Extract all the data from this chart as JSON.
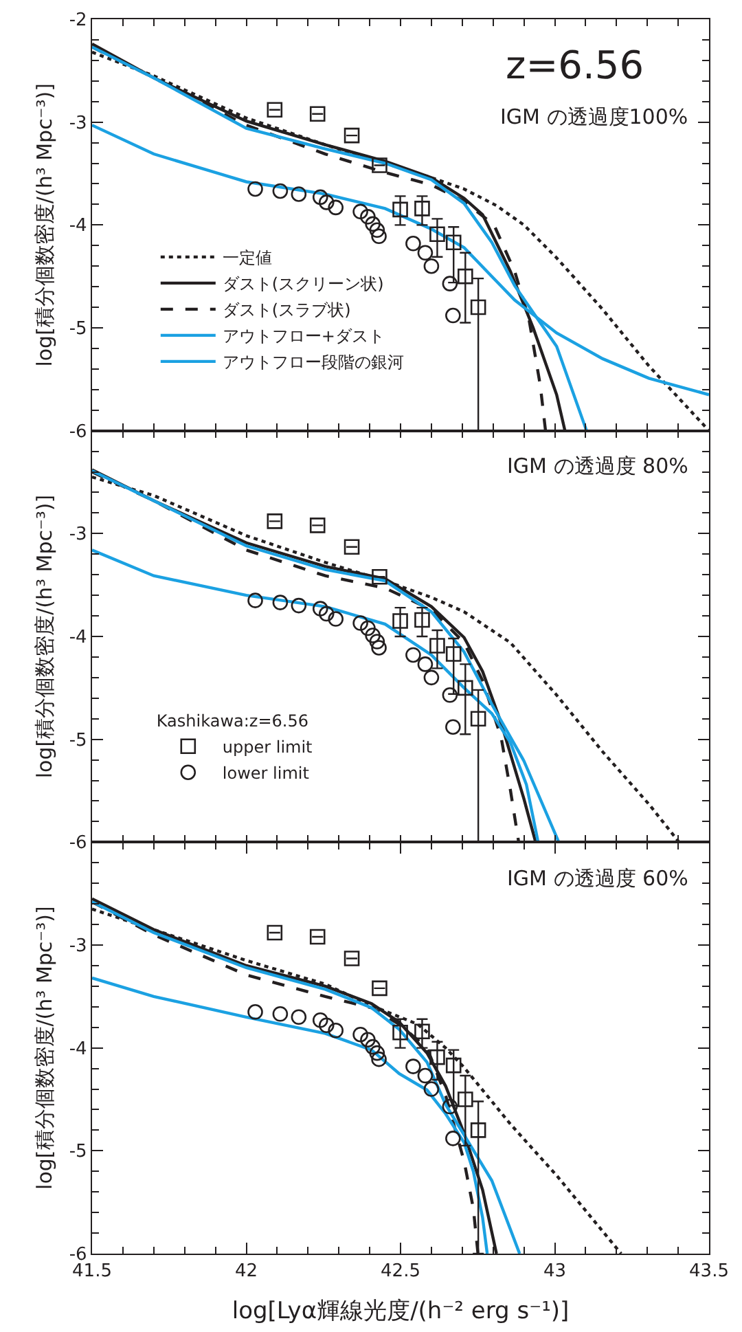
{
  "chart_data": [
    {
      "type": "line",
      "ylabel": "log[積分個数密度/(h³ Mpc⁻³)]",
      "annotations": [
        "z=6.56",
        "IGM の透過度100%"
      ],
      "xlim": [
        41.5,
        43.5
      ],
      "xticks": [
        {
          "value": 41.5,
          "label": null
        },
        {
          "value": 42,
          "label": null
        },
        {
          "value": 42.5,
          "label": null
        },
        {
          "value": 43,
          "label": null
        },
        {
          "value": 43.5,
          "label": null
        }
      ],
      "ylim": [
        -6,
        -2
      ],
      "yticks": [
        -2,
        -3,
        -4,
        -5,
        -6
      ],
      "tick_labels": "y",
      "legend": "bottom left",
      "grid": false,
      "series": [
        {
          "name": "一定値",
          "line_style": "dotted",
          "color": "#231f20",
          "x": [
            41.5,
            41.7,
            42.0,
            42.256,
            42.45,
            42.6,
            42.706,
            42.81,
            42.9,
            43.006,
            43.155,
            43.305,
            43.5
          ],
          "values": [
            -2.32,
            -2.55,
            -2.96,
            -3.22,
            -3.4,
            -3.54,
            -3.65,
            -3.81,
            -4.0,
            -4.32,
            -4.82,
            -5.37,
            -6.0
          ]
        },
        {
          "name": "ダスト(スクリーン状)",
          "line_style": "solid",
          "color": "#231f20",
          "x": [
            41.5,
            41.7,
            42.0,
            42.256,
            42.45,
            42.6,
            42.706,
            42.766,
            42.856,
            42.93,
            43.006,
            43.033
          ],
          "values": [
            -2.24,
            -2.57,
            -2.99,
            -3.22,
            -3.38,
            -3.54,
            -3.74,
            -3.9,
            -4.45,
            -5.0,
            -5.65,
            -6.0
          ]
        },
        {
          "name": "ダスト(スラブ状)",
          "line_style": "dashed",
          "color": "#231f20",
          "x": [
            41.5,
            41.7,
            42.0,
            42.256,
            42.45,
            42.6,
            42.706,
            42.803,
            42.87,
            42.916,
            42.953,
            42.97
          ],
          "values": [
            -2.27,
            -2.57,
            -3.03,
            -3.31,
            -3.49,
            -3.61,
            -3.77,
            -4.0,
            -4.45,
            -4.91,
            -5.56,
            -6.0
          ]
        },
        {
          "name": "アウトフロー+ダスト",
          "line_style": "solid",
          "color": "#1ba1e2",
          "x": [
            41.5,
            41.7,
            42.0,
            42.256,
            42.45,
            42.6,
            42.706,
            42.796,
            42.87,
            43.006,
            43.103
          ],
          "values": [
            -2.27,
            -2.57,
            -3.06,
            -3.26,
            -3.4,
            -3.56,
            -3.79,
            -4.17,
            -4.59,
            -5.18,
            -6.0
          ]
        },
        {
          "name": "アウトフロー段階の銀河",
          "line_style": "solid",
          "color": "#1ba1e2",
          "x": [
            41.5,
            41.7,
            42.0,
            42.256,
            42.45,
            42.6,
            42.706,
            42.796,
            42.87,
            43.006,
            43.155,
            43.305,
            43.5
          ],
          "values": [
            -3.03,
            -3.31,
            -3.58,
            -3.7,
            -3.84,
            -4.04,
            -4.22,
            -4.5,
            -4.73,
            -5.05,
            -5.3,
            -5.49,
            -5.65
          ]
        },
        {
          "type": "scatter",
          "marker": "square",
          "color": "#231f20",
          "x": [
            42.092,
            42.231,
            42.342,
            42.432,
            42.499,
            42.57,
            42.619,
            42.672,
            42.71,
            42.752
          ],
          "values": [
            -2.88,
            -2.92,
            -3.13,
            -3.42,
            -3.85,
            -3.84,
            -4.09,
            -4.17,
            -4.5,
            -4.8
          ],
          "errors": [
            null,
            null,
            null,
            null,
            [
              -4.0,
              -3.72
            ],
            [
              -4.0,
              -3.72
            ],
            [
              -4.31,
              -3.94
            ],
            [
              -4.56,
              -4.02
            ],
            [
              -4.95,
              -4.27
            ],
            [
              -6,
              -4.52
            ]
          ]
        },
        {
          "type": "scatter",
          "marker": "circle",
          "color": "#231f20",
          "x": [
            42.029,
            42.11,
            42.17,
            42.24,
            42.26,
            42.29,
            42.37,
            42.394,
            42.41,
            42.424,
            42.43,
            42.541,
            42.58,
            42.6,
            42.66,
            42.67
          ],
          "values": [
            -3.65,
            -3.67,
            -3.7,
            -3.73,
            -3.78,
            -3.83,
            -3.87,
            -3.92,
            -3.99,
            -4.05,
            -4.11,
            -4.18,
            -4.27,
            -4.4,
            -4.57,
            -4.88
          ]
        }
      ]
    },
    {
      "type": "line",
      "ylabel": "log[積分個数密度/(h³ Mpc⁻³)]",
      "annotations": [
        "IGM の透過度 80%"
      ],
      "xlim": [
        41.5,
        43.5
      ],
      "xticks": [
        {
          "value": 41.5,
          "label": null
        },
        {
          "value": 42,
          "label": null
        },
        {
          "value": 42.5,
          "label": null
        },
        {
          "value": 43,
          "label": null
        },
        {
          "value": 43.5,
          "label": null
        }
      ],
      "ylim": [
        -6,
        -2
      ],
      "yticks": [
        {
          "value": -2,
          "label": null
        },
        -3,
        -4,
        -5,
        -6
      ],
      "tick_labels": "y",
      "legend": "bottom left",
      "legend_title": "Kashikawa:z=6.56",
      "grid": false,
      "series": [
        {
          "line_style": "dotted",
          "color": "#231f20",
          "x": [
            41.5,
            41.7,
            42.0,
            42.256,
            42.45,
            42.6,
            42.706,
            42.856,
            43.006,
            43.155,
            43.305,
            43.403
          ],
          "values": [
            -2.45,
            -2.63,
            -3.02,
            -3.28,
            -3.46,
            -3.62,
            -3.76,
            -4.06,
            -4.57,
            -5.12,
            -5.63,
            -6.0
          ]
        },
        {
          "line_style": "solid",
          "color": "#231f20",
          "x": [
            41.5,
            41.7,
            42.0,
            42.256,
            42.45,
            42.6,
            42.706,
            42.766,
            42.826,
            42.9,
            42.938
          ],
          "values": [
            -2.38,
            -2.68,
            -3.09,
            -3.32,
            -3.44,
            -3.71,
            -4.01,
            -4.34,
            -4.84,
            -5.58,
            -6.0
          ]
        },
        {
          "line_style": "dashed",
          "color": "#231f20",
          "x": [
            41.5,
            41.7,
            42.0,
            42.256,
            42.45,
            42.6,
            42.706,
            42.766,
            42.826,
            42.856,
            42.883
          ],
          "values": [
            -2.4,
            -2.68,
            -3.16,
            -3.41,
            -3.53,
            -3.74,
            -4.06,
            -4.43,
            -4.98,
            -5.49,
            -6.0
          ]
        },
        {
          "line_style": "solid",
          "color": "#1ba1e2",
          "x": [
            41.5,
            41.7,
            42.0,
            42.256,
            42.45,
            42.6,
            42.706,
            42.796,
            42.9,
            43.013
          ],
          "values": [
            -2.39,
            -2.68,
            -3.12,
            -3.35,
            -3.46,
            -3.76,
            -4.15,
            -4.66,
            -5.21,
            -6.0
          ]
        },
        {
          "line_style": "solid",
          "color": "#1ba1e2",
          "x": [
            41.5,
            41.7,
            42.0,
            42.256,
            42.45,
            42.6,
            42.706,
            42.796,
            42.856,
            42.908,
            42.946
          ],
          "values": [
            -3.16,
            -3.41,
            -3.6,
            -3.71,
            -3.88,
            -4.18,
            -4.5,
            -4.75,
            -5.03,
            -5.44,
            -6.0
          ]
        },
        {
          "name": "upper limit",
          "type": "scatter",
          "marker": "square",
          "color": "#231f20",
          "x": [
            42.092,
            42.231,
            42.342,
            42.432,
            42.499,
            42.57,
            42.619,
            42.672,
            42.71,
            42.752
          ],
          "values": [
            -2.88,
            -2.92,
            -3.13,
            -3.42,
            -3.85,
            -3.84,
            -4.09,
            -4.17,
            -4.5,
            -4.8
          ],
          "errors": [
            null,
            null,
            null,
            null,
            [
              -4.0,
              -3.72
            ],
            [
              -4.0,
              -3.72
            ],
            [
              -4.31,
              -3.94
            ],
            [
              -4.56,
              -4.02
            ],
            [
              -4.95,
              -4.27
            ],
            [
              -6,
              -4.52
            ]
          ]
        },
        {
          "name": "lower limit",
          "type": "scatter",
          "marker": "circle",
          "color": "#231f20",
          "x": [
            42.029,
            42.11,
            42.17,
            42.24,
            42.26,
            42.29,
            42.37,
            42.394,
            42.41,
            42.424,
            42.43,
            42.541,
            42.58,
            42.6,
            42.66,
            42.67
          ],
          "values": [
            -3.65,
            -3.67,
            -3.7,
            -3.73,
            -3.78,
            -3.83,
            -3.87,
            -3.92,
            -3.99,
            -4.05,
            -4.11,
            -4.18,
            -4.27,
            -4.4,
            -4.57,
            -4.88
          ]
        }
      ]
    },
    {
      "type": "line",
      "ylabel": "log[積分個数密度/(h³ Mpc⁻³)]",
      "xlabel": "log[Lyα輝線光度/(h⁻² erg s⁻¹)]",
      "annotations": [
        "IGM の透過度 60%"
      ],
      "xlim": [
        41.5,
        43.5
      ],
      "xticks": [
        41.5,
        42,
        42.5,
        43,
        43.5
      ],
      "ylim": [
        -6,
        -2
      ],
      "yticks": [
        {
          "value": -2,
          "label": null
        },
        -3,
        -4,
        -5,
        -6
      ],
      "grid": false,
      "series": [
        {
          "line_style": "dotted",
          "color": "#231f20",
          "x": [
            41.5,
            41.7,
            42.0,
            42.256,
            42.406,
            42.556,
            42.646,
            42.706,
            42.856,
            43.006,
            43.215
          ],
          "values": [
            -2.65,
            -2.85,
            -3.15,
            -3.38,
            -3.59,
            -3.77,
            -4.0,
            -4.19,
            -4.74,
            -5.24,
            -6.0
          ]
        },
        {
          "line_style": "solid",
          "color": "#231f20",
          "x": [
            41.5,
            41.7,
            42.0,
            42.256,
            42.406,
            42.496,
            42.586,
            42.646,
            42.706,
            42.766,
            42.811
          ],
          "values": [
            -2.55,
            -2.85,
            -3.2,
            -3.4,
            -3.57,
            -3.75,
            -4.05,
            -4.37,
            -4.83,
            -5.38,
            -6.0
          ]
        },
        {
          "line_style": "dashed",
          "color": "#231f20",
          "x": [
            41.5,
            41.7,
            42.0,
            42.256,
            42.406,
            42.496,
            42.586,
            42.646,
            42.706,
            42.736,
            42.751
          ],
          "values": [
            -2.58,
            -2.9,
            -3.29,
            -3.5,
            -3.61,
            -3.77,
            -4.0,
            -4.46,
            -5.1,
            -5.56,
            -6.0
          ]
        },
        {
          "line_style": "solid",
          "color": "#1ba1e2",
          "x": [
            41.5,
            41.7,
            42.0,
            42.256,
            42.406,
            42.496,
            42.586,
            42.646,
            42.721,
            42.796,
            42.886
          ],
          "values": [
            -2.58,
            -2.88,
            -3.22,
            -3.43,
            -3.61,
            -3.82,
            -4.14,
            -4.55,
            -4.92,
            -5.29,
            -6.0
          ]
        },
        {
          "line_style": "solid",
          "color": "#1ba1e2",
          "x": [
            41.5,
            41.7,
            42.0,
            42.256,
            42.406,
            42.496,
            42.586,
            42.646,
            42.706,
            42.736,
            42.766,
            42.781
          ],
          "values": [
            -3.32,
            -3.5,
            -3.7,
            -3.86,
            -4.02,
            -4.25,
            -4.41,
            -4.64,
            -4.92,
            -5.2,
            -5.65,
            -6.0
          ]
        },
        {
          "type": "scatter",
          "marker": "square",
          "color": "#231f20",
          "x": [
            42.092,
            42.231,
            42.342,
            42.432,
            42.499,
            42.57,
            42.619,
            42.672,
            42.71,
            42.752
          ],
          "values": [
            -2.88,
            -2.92,
            -3.13,
            -3.42,
            -3.85,
            -3.84,
            -4.09,
            -4.17,
            -4.5,
            -4.8
          ],
          "errors": [
            null,
            null,
            null,
            null,
            [
              -4.0,
              -3.72
            ],
            [
              -4.0,
              -3.72
            ],
            [
              -4.31,
              -3.94
            ],
            [
              -4.56,
              -4.02
            ],
            [
              -4.95,
              -4.27
            ],
            [
              -6,
              -4.52
            ]
          ]
        },
        {
          "type": "scatter",
          "marker": "circle",
          "color": "#231f20",
          "x": [
            42.029,
            42.11,
            42.17,
            42.24,
            42.26,
            42.29,
            42.37,
            42.394,
            42.41,
            42.424,
            42.43,
            42.541,
            42.58,
            42.6,
            42.66,
            42.67
          ],
          "values": [
            -3.65,
            -3.67,
            -3.7,
            -3.73,
            -3.78,
            -3.83,
            -3.87,
            -3.92,
            -3.99,
            -4.05,
            -4.11,
            -4.18,
            -4.27,
            -4.4,
            -4.57,
            -4.88
          ]
        }
      ]
    }
  ]
}
